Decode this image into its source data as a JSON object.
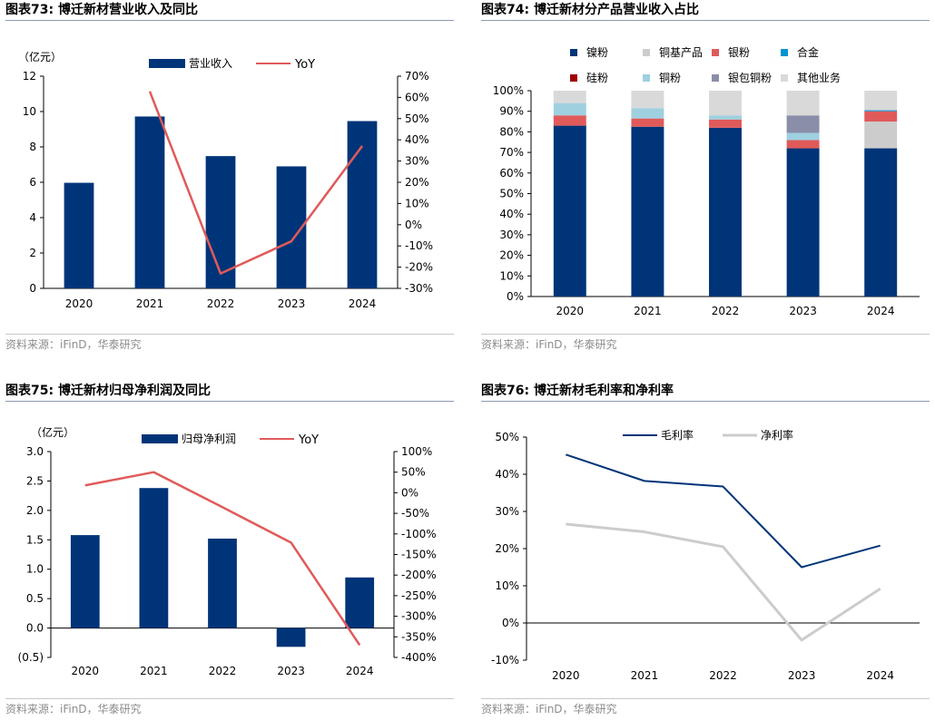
{
  "colors": {
    "navy": "#003478",
    "red": "#e05a5a",
    "grey": "#cccccc",
    "darkred": "#a00000",
    "lightblue": "#9fd0e0",
    "cyan": "#0095d0",
    "slate": "#8a8ea8",
    "lightgrey": "#d9d9d9",
    "axis": "#000000"
  },
  "chart_data": [
    {
      "id": "fig73",
      "type": "bar",
      "title": "图表73:  博迁新材营业收入及同比",
      "source": "资料来源：iFinD，华泰研究",
      "unit_label": "（亿元）",
      "categories": [
        "2020",
        "2021",
        "2022",
        "2023",
        "2024"
      ],
      "series": [
        {
          "name": "营业收入",
          "kind": "bar",
          "axis": "left",
          "values": [
            5.97,
            9.72,
            7.48,
            6.9,
            9.46
          ]
        },
        {
          "name": "YoY",
          "kind": "line",
          "axis": "right",
          "values": [
            null,
            62.8,
            -23.0,
            -7.8,
            37.1
          ]
        }
      ],
      "left_axis": {
        "min": 0,
        "max": 12,
        "ticks": [
          0,
          2,
          4,
          6,
          8,
          10,
          12
        ],
        "tick_labels": [
          "0",
          "2",
          "4",
          "6",
          "8",
          "10",
          "12"
        ]
      },
      "right_axis": {
        "min": -30,
        "max": 70,
        "ticks": [
          -30,
          -20,
          -10,
          0,
          10,
          20,
          30,
          40,
          50,
          60,
          70
        ],
        "tick_labels": [
          "-30%",
          "-20%",
          "-10%",
          "0%",
          "10%",
          "20%",
          "30%",
          "40%",
          "50%",
          "60%",
          "70%"
        ]
      }
    },
    {
      "id": "fig74",
      "type": "bar",
      "stacked": true,
      "title": "图表74:  博迁新材分产品营业收入占比",
      "source": "资料来源：iFinD，华泰研究",
      "categories": [
        "2020",
        "2021",
        "2022",
        "2023",
        "2024"
      ],
      "series": [
        {
          "name": "镍粉",
          "color_key": "navy",
          "values": [
            83.0,
            82.5,
            82.0,
            72.0,
            72.0
          ]
        },
        {
          "name": "铜基产品",
          "color_key": "grey",
          "values": [
            0,
            0,
            0,
            0,
            13.0
          ]
        },
        {
          "name": "银粉",
          "color_key": "red",
          "values": [
            5.0,
            4.0,
            4.0,
            4.0,
            5.0
          ]
        },
        {
          "name": "合金",
          "color_key": "cyan",
          "values": [
            0,
            0,
            0,
            0,
            0.5
          ]
        },
        {
          "name": "硅粉",
          "color_key": "darkred",
          "values": [
            0,
            0,
            0,
            0,
            0
          ]
        },
        {
          "name": "铜粉",
          "color_key": "lightblue",
          "values": [
            6.0,
            5.0,
            2.0,
            3.5,
            0
          ]
        },
        {
          "name": "银包铜粉",
          "color_key": "slate",
          "values": [
            0,
            0,
            0,
            8.5,
            0
          ]
        },
        {
          "name": "其他业务",
          "color_key": "lightgrey",
          "values": [
            6.0,
            8.5,
            12.0,
            12.0,
            9.5
          ]
        }
      ],
      "left_axis": {
        "min": 0,
        "max": 100,
        "ticks": [
          0,
          10,
          20,
          30,
          40,
          50,
          60,
          70,
          80,
          90,
          100
        ],
        "tick_labels": [
          "0%",
          "10%",
          "20%",
          "30%",
          "40%",
          "50%",
          "60%",
          "70%",
          "80%",
          "90%",
          "100%"
        ]
      }
    },
    {
      "id": "fig75",
      "type": "bar",
      "title": "图表75:  博迁新材归母净利润及同比",
      "source": "资料来源：iFinD，华泰研究",
      "unit_label": "（亿元）",
      "categories": [
        "2020",
        "2021",
        "2022",
        "2023",
        "2024"
      ],
      "series": [
        {
          "name": "归母净利润",
          "kind": "bar",
          "axis": "left",
          "values": [
            1.58,
            2.38,
            1.52,
            -0.32,
            0.86
          ]
        },
        {
          "name": "YoY",
          "kind": "line",
          "axis": "right",
          "values": [
            18,
            50,
            -35,
            -121,
            -370
          ]
        }
      ],
      "left_axis": {
        "min": -0.5,
        "max": 3.0,
        "ticks": [
          -0.5,
          0,
          0.5,
          1.0,
          1.5,
          2.0,
          2.5,
          3.0
        ],
        "tick_labels": [
          "(0.5)",
          "0.0",
          "0.5",
          "1.0",
          "1.5",
          "2.0",
          "2.5",
          "3.0"
        ]
      },
      "right_axis": {
        "min": -400,
        "max": 100,
        "ticks": [
          -400,
          -350,
          -300,
          -250,
          -200,
          -150,
          -100,
          -50,
          0,
          50,
          100
        ],
        "tick_labels": [
          "-400%",
          "-350%",
          "-300%",
          "-250%",
          "-200%",
          "-150%",
          "-100%",
          "-50%",
          "0%",
          "50%",
          "100%"
        ]
      }
    },
    {
      "id": "fig76",
      "type": "line",
      "title": "图表76:  博迁新材毛利率和净利率",
      "source": "资料来源：iFinD，华泰研究",
      "categories": [
        "2020",
        "2021",
        "2022",
        "2023",
        "2024"
      ],
      "series": [
        {
          "name": "毛利率",
          "color_key": "navy",
          "values": [
            45.3,
            38.2,
            36.7,
            15.0,
            20.8
          ]
        },
        {
          "name": "净利率",
          "color_key": "grey",
          "values": [
            26.6,
            24.5,
            20.5,
            -4.6,
            9.2
          ]
        }
      ],
      "left_axis": {
        "min": -10,
        "max": 50,
        "ticks": [
          -10,
          0,
          10,
          20,
          30,
          40,
          50
        ],
        "tick_labels": [
          "-10%",
          "0%",
          "10%",
          "20%",
          "30%",
          "40%",
          "50%"
        ]
      }
    }
  ]
}
